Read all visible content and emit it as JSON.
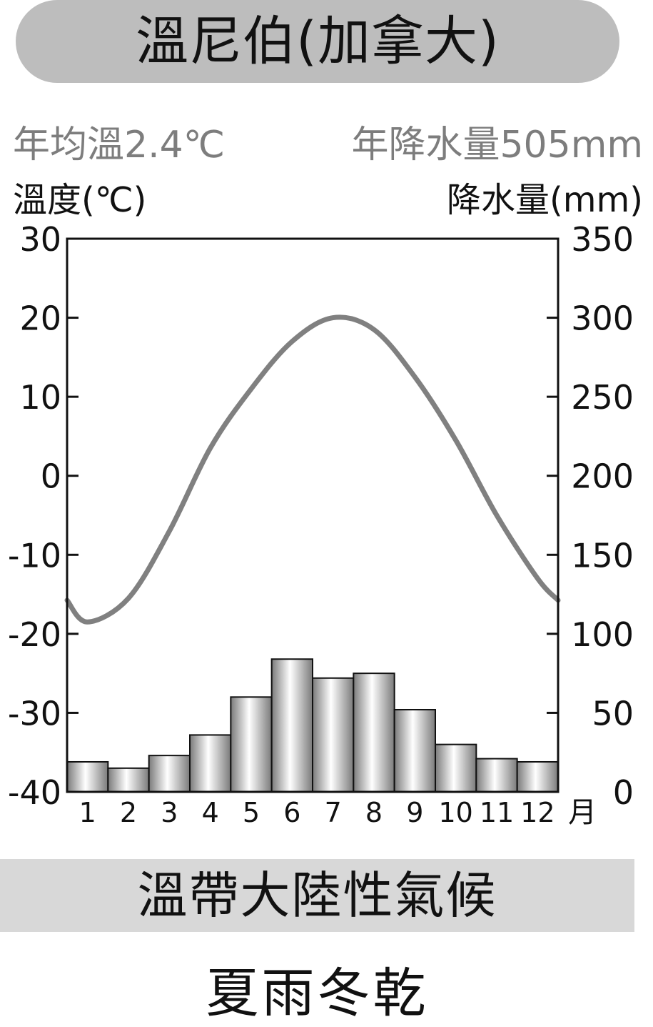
{
  "header": {
    "title": "溫尼伯(加拿大)"
  },
  "stats": {
    "annual_temp": "年均溫2.4℃",
    "annual_precip": "年降水量505mm"
  },
  "axis_units": {
    "left": "溫度(℃)",
    "right": "降水量(mm)"
  },
  "chart_data": {
    "type": "bar+line",
    "categories": [
      "1",
      "2",
      "3",
      "4",
      "5",
      "6",
      "7",
      "8",
      "9",
      "10",
      "11",
      "12"
    ],
    "x_unit": "月",
    "temperature": {
      "values": [
        -18.5,
        -15.5,
        -7,
        3.5,
        11,
        17,
        20,
        18.5,
        12.5,
        4.5,
        -5,
        -13
      ],
      "color": "#808080",
      "ylim": [
        -40,
        30
      ],
      "ticks": [
        "30",
        "20",
        "10",
        "0",
        "-10",
        "-20",
        "-30",
        "-40"
      ]
    },
    "precipitation": {
      "values": [
        19,
        15,
        23,
        36,
        60,
        84,
        72,
        75,
        52,
        30,
        21,
        19
      ],
      "ylim": [
        0,
        350
      ],
      "ticks": [
        "350",
        "300",
        "250",
        "200",
        "150",
        "100",
        "50",
        "0"
      ]
    },
    "grid": false
  },
  "climate": {
    "type": "溫帶大陸性氣候",
    "pattern": "夏雨冬乾"
  }
}
